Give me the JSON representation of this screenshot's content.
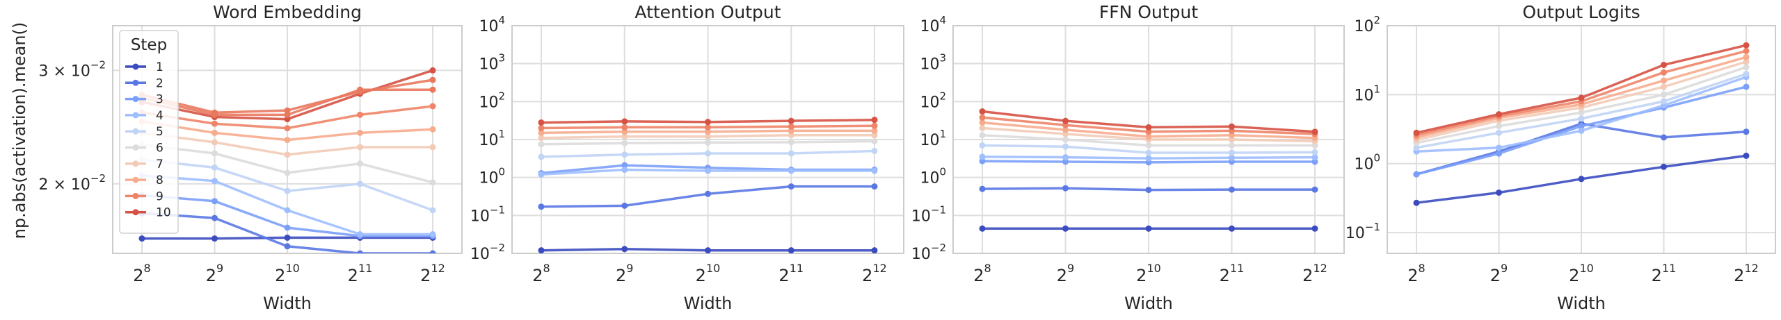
{
  "figure": {
    "ylabel": "np.abs(activation).mean()",
    "xlabel": "Width",
    "legend_title": "Step",
    "legend_placement": "upper-left of first panel"
  },
  "colors": {
    "steps": [
      "#3b4cc0",
      "#5a78e4",
      "#7b9ff9",
      "#9ebeff",
      "#c0d4f5",
      "#dddcdc",
      "#f2cbb7",
      "#f7ac8e",
      "#ee8468",
      "#d65244"
    ],
    "grid": "#dedede",
    "axes": "#cccccc"
  },
  "chart_data": [
    {
      "type": "line",
      "title": "Word Embedding",
      "xlabel": "Width",
      "ylabel": "np.abs(activation).mean()",
      "x": [
        256,
        512,
        1024,
        2048,
        4096
      ],
      "xtick_labels": [
        [
          "2",
          "8"
        ],
        [
          "2",
          "9"
        ],
        [
          "2",
          "10"
        ],
        [
          "2",
          "11"
        ],
        [
          "2",
          "12"
        ]
      ],
      "xscale": "log2",
      "yscale": "log",
      "ylim": [
        0.0156,
        0.0352
      ],
      "yticks": [
        {
          "value": 0.02,
          "mant": "2 × 10",
          "exp": "−2"
        },
        {
          "value": 0.03,
          "mant": "3 × 10",
          "exp": "−2"
        }
      ],
      "grid": true,
      "legend": "top-left",
      "series": [
        {
          "name": "1",
          "values": [
            0.01645,
            0.01645,
            0.0165,
            0.0165,
            0.0165
          ]
        },
        {
          "name": "2",
          "values": [
            0.018,
            0.0177,
            0.016,
            0.0156,
            0.0156
          ]
        },
        {
          "name": "3",
          "values": [
            0.0192,
            0.0188,
            0.0171,
            0.0166,
            0.0166
          ]
        },
        {
          "name": "4",
          "values": [
            0.0206,
            0.0202,
            0.0182,
            0.0167,
            0.0167
          ]
        },
        {
          "name": "5",
          "values": [
            0.0218,
            0.0212,
            0.0195,
            0.02,
            0.0182
          ]
        },
        {
          "name": "6",
          "values": [
            0.023,
            0.0223,
            0.0208,
            0.0215,
            0.0201
          ]
        },
        {
          "name": "7",
          "values": [
            0.024,
            0.0232,
            0.0222,
            0.0228,
            0.0228
          ]
        },
        {
          "name": "8",
          "values": [
            0.025,
            0.024,
            0.0234,
            0.024,
            0.0243
          ]
        },
        {
          "name": "9",
          "values": [
            0.0258,
            0.0248,
            0.0244,
            0.0256,
            0.0264
          ]
        },
        {
          "name": "10",
          "values": [
            0.0268,
            0.0254,
            0.0252,
            0.0276,
            0.03
          ]
        },
        {
          "name": "",
          "values": [
            0.0272,
            0.0256,
            0.0256,
            0.028,
            0.028
          ]
        },
        {
          "name": "",
          "values": [
            0.0275,
            0.0258,
            0.026,
            0.0278,
            0.029
          ]
        }
      ]
    },
    {
      "type": "line",
      "title": "Attention Output",
      "xlabel": "Width",
      "x": [
        256,
        512,
        1024,
        2048,
        4096
      ],
      "xtick_labels": [
        [
          "2",
          "8"
        ],
        [
          "2",
          "9"
        ],
        [
          "2",
          "10"
        ],
        [
          "2",
          "11"
        ],
        [
          "2",
          "12"
        ]
      ],
      "xscale": "log2",
      "yscale": "log",
      "ylim": [
        0.01,
        10000
      ],
      "yticks": [
        {
          "value": 0.01,
          "mant": "10",
          "exp": "−2"
        },
        {
          "value": 0.1,
          "mant": "10",
          "exp": "−1"
        },
        {
          "value": 1,
          "mant": "10",
          "exp": "0"
        },
        {
          "value": 10,
          "mant": "10",
          "exp": "1"
        },
        {
          "value": 100,
          "mant": "10",
          "exp": "2"
        },
        {
          "value": 1000,
          "mant": "10",
          "exp": "3"
        },
        {
          "value": 10000,
          "mant": "10",
          "exp": "4"
        }
      ],
      "grid": true,
      "series": [
        {
          "name": "1",
          "values": [
            0.012,
            0.013,
            0.012,
            0.012,
            0.012
          ]
        },
        {
          "name": "2",
          "values": [
            0.17,
            0.18,
            0.37,
            0.58,
            0.58
          ]
        },
        {
          "name": "3",
          "values": [
            1.3,
            2.1,
            1.8,
            1.6,
            1.6
          ]
        },
        {
          "name": "4",
          "values": [
            1.2,
            1.6,
            1.5,
            1.5,
            1.5
          ]
        },
        {
          "name": "5",
          "values": [
            3.5,
            4.0,
            4.3,
            4.3,
            5.0
          ]
        },
        {
          "name": "6",
          "values": [
            7.5,
            8.0,
            8.3,
            8.5,
            9.0
          ]
        },
        {
          "name": "7",
          "values": [
            11,
            12,
            12,
            13,
            13
          ]
        },
        {
          "name": "8",
          "values": [
            15,
            16,
            16,
            17,
            17
          ]
        },
        {
          "name": "9",
          "values": [
            20,
            21,
            21,
            22,
            23
          ]
        },
        {
          "name": "10",
          "values": [
            28,
            30,
            29,
            31,
            33
          ]
        }
      ]
    },
    {
      "type": "line",
      "title": "FFN Output",
      "xlabel": "Width",
      "x": [
        256,
        512,
        1024,
        2048,
        4096
      ],
      "xtick_labels": [
        [
          "2",
          "8"
        ],
        [
          "2",
          "9"
        ],
        [
          "2",
          "10"
        ],
        [
          "2",
          "11"
        ],
        [
          "2",
          "12"
        ]
      ],
      "xscale": "log2",
      "yscale": "log",
      "ylim": [
        0.01,
        10000
      ],
      "yticks": [
        {
          "value": 0.01,
          "mant": "10",
          "exp": "−2"
        },
        {
          "value": 0.1,
          "mant": "10",
          "exp": "−1"
        },
        {
          "value": 1,
          "mant": "10",
          "exp": "0"
        },
        {
          "value": 10,
          "mant": "10",
          "exp": "1"
        },
        {
          "value": 100,
          "mant": "10",
          "exp": "2"
        },
        {
          "value": 1000,
          "mant": "10",
          "exp": "3"
        },
        {
          "value": 10000,
          "mant": "10",
          "exp": "4"
        }
      ],
      "grid": true,
      "series": [
        {
          "name": "1",
          "values": [
            0.045,
            0.045,
            0.045,
            0.045,
            0.045
          ]
        },
        {
          "name": "2",
          "values": [
            0.5,
            0.52,
            0.47,
            0.48,
            0.48
          ]
        },
        {
          "name": "3",
          "values": [
            2.7,
            2.6,
            2.5,
            2.6,
            2.6
          ]
        },
        {
          "name": "4",
          "values": [
            3.5,
            3.4,
            3.2,
            3.3,
            3.4
          ]
        },
        {
          "name": "5",
          "values": [
            7,
            6.5,
            4.5,
            4.5,
            4.6
          ]
        },
        {
          "name": "6",
          "values": [
            13,
            10,
            7,
            7,
            7
          ]
        },
        {
          "name": "7",
          "values": [
            20,
            14,
            10,
            10,
            9
          ]
        },
        {
          "name": "8",
          "values": [
            28,
            18,
            12,
            13,
            11
          ]
        },
        {
          "name": "9",
          "values": [
            38,
            24,
            16,
            17,
            14
          ]
        },
        {
          "name": "10",
          "values": [
            55,
            31,
            21,
            22,
            16
          ]
        }
      ]
    },
    {
      "type": "line",
      "title": "Output Logits",
      "xlabel": "Width",
      "x": [
        256,
        512,
        1024,
        2048,
        4096
      ],
      "xtick_labels": [
        [
          "2",
          "8"
        ],
        [
          "2",
          "9"
        ],
        [
          "2",
          "10"
        ],
        [
          "2",
          "11"
        ],
        [
          "2",
          "12"
        ]
      ],
      "xscale": "log2",
      "yscale": "log",
      "ylim": [
        0.05,
        100
      ],
      "yticks": [
        {
          "value": 0.1,
          "mant": "10",
          "exp": "−1"
        },
        {
          "value": 1,
          "mant": "10",
          "exp": "0"
        },
        {
          "value": 10,
          "mant": "10",
          "exp": "1"
        },
        {
          "value": 100,
          "mant": "10",
          "exp": "2"
        }
      ],
      "grid": true,
      "series": [
        {
          "name": "1",
          "values": [
            0.27,
            0.38,
            0.6,
            0.9,
            1.3
          ]
        },
        {
          "name": "2",
          "values": [
            0.7,
            1.5,
            3.8,
            2.4,
            2.9
          ]
        },
        {
          "name": "3",
          "values": [
            0.7,
            1.4,
            3.5,
            6.5,
            13
          ]
        },
        {
          "name": "4",
          "values": [
            1.5,
            1.7,
            3.0,
            7,
            18
          ]
        },
        {
          "name": "5",
          "values": [
            1.7,
            2.8,
            4.5,
            8,
            20
          ]
        },
        {
          "name": "6",
          "values": [
            2.0,
            3.5,
            5.5,
            10,
            25
          ]
        },
        {
          "name": "7",
          "values": [
            2.2,
            4.2,
            6.5,
            13,
            30
          ]
        },
        {
          "name": "8",
          "values": [
            2.4,
            4.6,
            7.2,
            16,
            35
          ]
        },
        {
          "name": "9",
          "values": [
            2.6,
            4.9,
            8.0,
            21,
            43
          ]
        },
        {
          "name": "10",
          "values": [
            2.8,
            5.2,
            9.0,
            27,
            52
          ]
        }
      ]
    }
  ]
}
